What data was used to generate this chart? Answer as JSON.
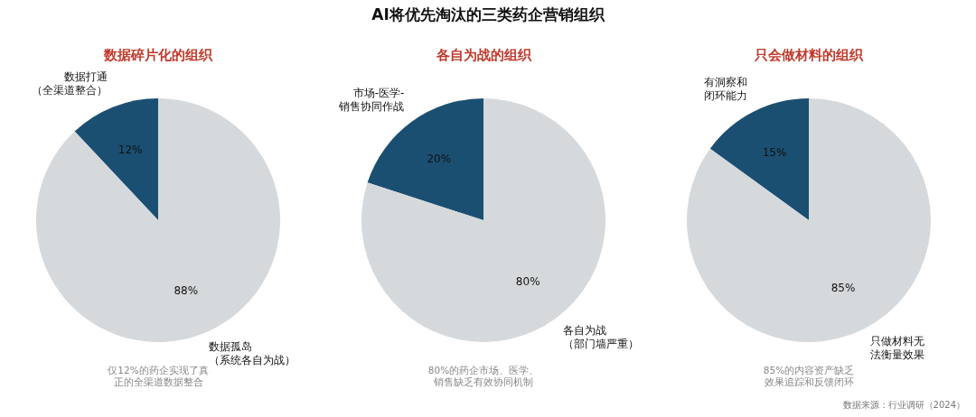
{
  "chart_data": [
    {
      "type": "pie",
      "title": "数据碎片化的组织",
      "categories": [
        "数据打通（全渠道整合）",
        "数据孤岛（系统各自为战）"
      ],
      "values": [
        12,
        88
      ],
      "colors": [
        "#1b4f72",
        "#d5d9dc"
      ],
      "value_labels": [
        "12%",
        "88%"
      ],
      "annotations": [
        "AI将优先淘汰的三类药企营销组织",
        "仅12%的药企实现了真正的全渠道数据整合"
      ]
    },
    {
      "type": "pie",
      "title": "各自为战的组织",
      "categories": [
        "市场-医学-销售协同作战",
        "各自为战（部门墙严重）"
      ],
      "values": [
        20,
        80
      ],
      "colors": [
        "#1b4f72",
        "#d5d9dc"
      ],
      "value_labels": [
        "20%",
        "80%"
      ],
      "annotations": [
        "80%的药企市场、医学、销售缺乏有效协同机制"
      ]
    },
    {
      "type": "pie",
      "title": "只会做材料的组织",
      "categories": [
        "有洞察和闭环能力",
        "只做材料无法衡量效果"
      ],
      "values": [
        15,
        85
      ],
      "colors": [
        "#1b4f72",
        "#d5d9dc"
      ],
      "value_labels": [
        "15%",
        "85%"
      ],
      "annotations": [
        "85%的内容资产缺乏效果追踪和反馈闭环",
        "数据来源：行业调研（2024）"
      ]
    }
  ]
}
